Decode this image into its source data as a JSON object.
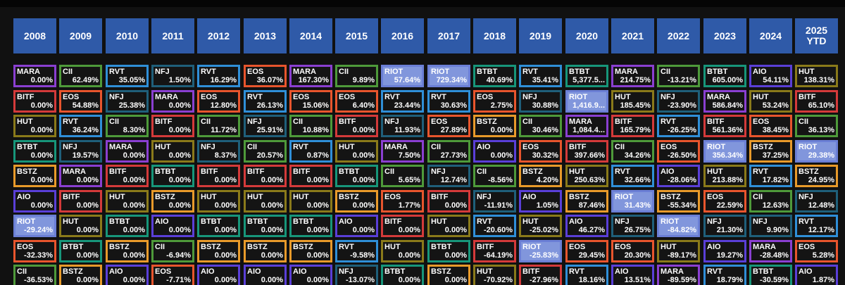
{
  "chart_data": {
    "type": "table",
    "years": [
      "2008",
      "2009",
      "2010",
      "2011",
      "2012",
      "2013",
      "2014",
      "2015",
      "2016",
      "2017",
      "2018",
      "2019",
      "2020",
      "2021",
      "2022",
      "2023",
      "2024",
      "2025\nYTD"
    ],
    "ticker_colors": {
      "MARA": "#8a3fd1",
      "CII": "#4e9a3a",
      "RVT": "#2f8fd8",
      "NFJ": "#1f5f7a",
      "EOS": "#e8552d",
      "RIOT": "#6b7fd6",
      "BTBT": "#17967a",
      "AIO": "#5a3fd8",
      "HUT": "#8a7a1a",
      "BITF": "#d43a3a",
      "BSTZ": "#e89a2a"
    },
    "highlight_ticker": "RIOT",
    "columns": [
      [
        [
          "MARA",
          "0.00%"
        ],
        [
          "BITF",
          "0.00%"
        ],
        [
          "HUT",
          "0.00%"
        ],
        [
          "BTBT",
          "0.00%"
        ],
        [
          "BSTZ",
          "0.00%"
        ],
        [
          "AIO",
          "0.00%"
        ],
        [
          "RIOT",
          "-29.24%"
        ],
        [
          "EOS",
          "-32.33%"
        ],
        [
          "CII",
          "-36.53%"
        ]
      ],
      [
        [
          "CII",
          "62.49%"
        ],
        [
          "EOS",
          "54.88%"
        ],
        [
          "RVT",
          "36.24%"
        ],
        [
          "NFJ",
          "19.57%"
        ],
        [
          "MARA",
          "0.00%"
        ],
        [
          "BITF",
          "0.00%"
        ],
        [
          "HUT",
          "0.00%"
        ],
        [
          "BTBT",
          "0.00%"
        ],
        [
          "BSTZ",
          "0.00%"
        ]
      ],
      [
        [
          "RVT",
          "35.05%"
        ],
        [
          "NFJ",
          "25.38%"
        ],
        [
          "CII",
          "8.30%"
        ],
        [
          "MARA",
          "0.00%"
        ],
        [
          "BITF",
          "0.00%"
        ],
        [
          "HUT",
          "0.00%"
        ],
        [
          "BTBT",
          "0.00%"
        ],
        [
          "BSTZ",
          "0.00%"
        ],
        [
          "AIO",
          "0.00%"
        ]
      ],
      [
        [
          "NFJ",
          "1.50%"
        ],
        [
          "MARA",
          "0.00%"
        ],
        [
          "BITF",
          "0.00%"
        ],
        [
          "HUT",
          "0.00%"
        ],
        [
          "BTBT",
          "0.00%"
        ],
        [
          "BSTZ",
          "0.00%"
        ],
        [
          "AIO",
          "0.00%"
        ],
        [
          "CII",
          "-6.94%"
        ],
        [
          "EOS",
          "-7.71%"
        ]
      ],
      [
        [
          "RVT",
          "16.29%"
        ],
        [
          "EOS",
          "12.80%"
        ],
        [
          "CII",
          "11.72%"
        ],
        [
          "NFJ",
          "8.37%"
        ],
        [
          "BITF",
          "0.00%"
        ],
        [
          "HUT",
          "0.00%"
        ],
        [
          "BTBT",
          "0.00%"
        ],
        [
          "BSTZ",
          "0.00%"
        ],
        [
          "AIO",
          "0.00%"
        ]
      ],
      [
        [
          "EOS",
          "36.07%"
        ],
        [
          "RVT",
          "26.13%"
        ],
        [
          "NFJ",
          "25.91%"
        ],
        [
          "CII",
          "20.57%"
        ],
        [
          "BITF",
          "0.00%"
        ],
        [
          "HUT",
          "0.00%"
        ],
        [
          "BTBT",
          "0.00%"
        ],
        [
          "BSTZ",
          "0.00%"
        ],
        [
          "AIO",
          "0.00%"
        ]
      ],
      [
        [
          "MARA",
          "167.30%"
        ],
        [
          "EOS",
          "15.06%"
        ],
        [
          "CII",
          "10.88%"
        ],
        [
          "RVT",
          "0.87%"
        ],
        [
          "BITF",
          "0.00%"
        ],
        [
          "HUT",
          "0.00%"
        ],
        [
          "BTBT",
          "0.00%"
        ],
        [
          "BSTZ",
          "0.00%"
        ],
        [
          "AIO",
          "0.00%"
        ]
      ],
      [
        [
          "CII",
          "9.89%"
        ],
        [
          "EOS",
          "6.40%"
        ],
        [
          "BITF",
          "0.00%"
        ],
        [
          "HUT",
          "0.00%"
        ],
        [
          "BTBT",
          "0.00%"
        ],
        [
          "BSTZ",
          "0.00%"
        ],
        [
          "AIO",
          "0.00%"
        ],
        [
          "RVT",
          "-9.58%"
        ],
        [
          "NFJ",
          "-13.07%"
        ]
      ],
      [
        [
          "RIOT",
          "57.64%"
        ],
        [
          "RVT",
          "23.44%"
        ],
        [
          "NFJ",
          "11.93%"
        ],
        [
          "MARA",
          "7.50%"
        ],
        [
          "CII",
          "5.65%"
        ],
        [
          "EOS",
          "1.77%"
        ],
        [
          "BITF",
          "0.00%"
        ],
        [
          "HUT",
          "0.00%"
        ],
        [
          "BTBT",
          "0.00%"
        ]
      ],
      [
        [
          "RIOT",
          "729.34%"
        ],
        [
          "RVT",
          "30.63%"
        ],
        [
          "EOS",
          "27.89%"
        ],
        [
          "CII",
          "27.73%"
        ],
        [
          "NFJ",
          "12.74%"
        ],
        [
          "BITF",
          "0.00%"
        ],
        [
          "HUT",
          "0.00%"
        ],
        [
          "BTBT",
          "0.00%"
        ],
        [
          "BSTZ",
          "0.00%"
        ]
      ],
      [
        [
          "BTBT",
          "40.69%"
        ],
        [
          "EOS",
          "2.75%"
        ],
        [
          "BSTZ",
          "0.00%"
        ],
        [
          "AIO",
          "0.00%"
        ],
        [
          "CII",
          "-8.56%"
        ],
        [
          "NFJ",
          "-11.91%"
        ],
        [
          "RVT",
          "-20.60%"
        ],
        [
          "BITF",
          "-64.19%"
        ],
        [
          "HUT",
          "-70.92%"
        ]
      ],
      [
        [
          "RVT",
          "35.41%"
        ],
        [
          "NFJ",
          "30.88%"
        ],
        [
          "CII",
          "30.46%"
        ],
        [
          "EOS",
          "30.32%"
        ],
        [
          "BSTZ",
          "4.20%"
        ],
        [
          "AIO",
          "1.05%"
        ],
        [
          "HUT",
          "-25.02%"
        ],
        [
          "RIOT",
          "-25.83%"
        ],
        [
          "BITF",
          "-27.96%"
        ]
      ],
      [
        [
          "BTBT",
          "5,377.5..."
        ],
        [
          "RIOT",
          "1,416.9..."
        ],
        [
          "MARA",
          "1,084.4..."
        ],
        [
          "BITF",
          "397.66%"
        ],
        [
          "HUT",
          "250.63%"
        ],
        [
          "BSTZ",
          "87.46%"
        ],
        [
          "AIO",
          "46.27%"
        ],
        [
          "EOS",
          "29.45%"
        ],
        [
          "RVT",
          "18.16%"
        ]
      ],
      [
        [
          "MARA",
          "214.75%"
        ],
        [
          "HUT",
          "185.45%"
        ],
        [
          "BITF",
          "165.79%"
        ],
        [
          "CII",
          "34.26%"
        ],
        [
          "RVT",
          "32.66%"
        ],
        [
          "RIOT",
          "31.43%"
        ],
        [
          "NFJ",
          "26.75%"
        ],
        [
          "EOS",
          "20.30%"
        ],
        [
          "AIO",
          "13.51%"
        ]
      ],
      [
        [
          "CII",
          "-13.21%"
        ],
        [
          "NFJ",
          "-23.90%"
        ],
        [
          "RVT",
          "-26.25%"
        ],
        [
          "EOS",
          "-26.50%"
        ],
        [
          "AIO",
          "-28.06%"
        ],
        [
          "BSTZ",
          "-55.34%"
        ],
        [
          "RIOT",
          "-84.82%"
        ],
        [
          "HUT",
          "-89.17%"
        ],
        [
          "MARA",
          "-89.59%"
        ]
      ],
      [
        [
          "BTBT",
          "605.00%"
        ],
        [
          "MARA",
          "586.84%"
        ],
        [
          "BITF",
          "561.36%"
        ],
        [
          "RIOT",
          "356.34%"
        ],
        [
          "HUT",
          "213.88%"
        ],
        [
          "EOS",
          "22.59%"
        ],
        [
          "NFJ",
          "21.30%"
        ],
        [
          "AIO",
          "19.27%"
        ],
        [
          "RVT",
          "18.79%"
        ]
      ],
      [
        [
          "AIO",
          "54.11%"
        ],
        [
          "HUT",
          "53.24%"
        ],
        [
          "EOS",
          "38.45%"
        ],
        [
          "BSTZ",
          "37.25%"
        ],
        [
          "RVT",
          "17.82%"
        ],
        [
          "CII",
          "12.63%"
        ],
        [
          "NFJ",
          "9.90%"
        ],
        [
          "MARA",
          "-28.48%"
        ],
        [
          "BTBT",
          "-30.59%"
        ]
      ],
      [
        [
          "HUT",
          "138.31%"
        ],
        [
          "BITF",
          "65.10%"
        ],
        [
          "CII",
          "36.13%"
        ],
        [
          "RIOT",
          "29.38%"
        ],
        [
          "BSTZ",
          "24.95%"
        ],
        [
          "NFJ",
          "12.48%"
        ],
        [
          "RVT",
          "12.17%"
        ],
        [
          "EOS",
          "5.28%"
        ],
        [
          "AIO",
          "1.87%"
        ]
      ]
    ]
  }
}
